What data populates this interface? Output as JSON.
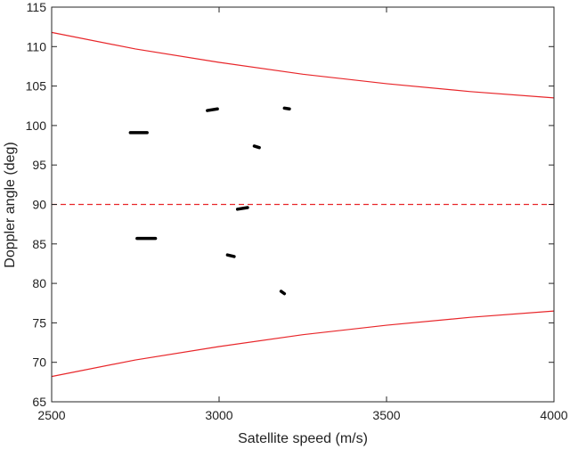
{
  "chart_data": {
    "type": "line",
    "title": "",
    "xlabel": "Satellite speed (m/s)",
    "ylabel": "Doppler angle (deg)",
    "xlim": [
      2500,
      4000
    ],
    "ylim": [
      65,
      115
    ],
    "xticks": [
      2500,
      3000,
      3500,
      4000
    ],
    "yticks": [
      65,
      70,
      75,
      80,
      85,
      90,
      95,
      100,
      105,
      110,
      115
    ],
    "grid": false,
    "legend": "none",
    "colors": {
      "bounds": "#e8262a",
      "center": "#e8262a",
      "segments": "#000000",
      "frame": "#262626"
    },
    "series": [
      {
        "style": "solid",
        "x": [
          2500,
          2750,
          3000,
          3250,
          3500,
          3750,
          4000
        ],
        "y": [
          111.8,
          109.7,
          108.0,
          106.5,
          105.3,
          104.3,
          103.5
        ]
      },
      {
        "style": "solid",
        "x": [
          2500,
          2750,
          3000,
          3250,
          3500,
          3750,
          4000
        ],
        "y": [
          68.2,
          70.3,
          72.0,
          73.5,
          74.7,
          75.7,
          76.5
        ]
      },
      {
        "style": "dashed",
        "x": [
          2500,
          4000
        ],
        "y": [
          90,
          90
        ]
      }
    ],
    "segments": [
      {
        "x": [
          2735,
          2785
        ],
        "y": [
          99.1,
          99.1
        ]
      },
      {
        "x": [
          2755,
          2810
        ],
        "y": [
          85.7,
          85.7
        ]
      },
      {
        "x": [
          2965,
          2995
        ],
        "y": [
          101.9,
          102.1
        ]
      },
      {
        "x": [
          3055,
          3085
        ],
        "y": [
          89.4,
          89.6
        ]
      },
      {
        "x": [
          3025,
          3045
        ],
        "y": [
          83.6,
          83.4
        ]
      },
      {
        "x": [
          3105,
          3120
        ],
        "y": [
          97.4,
          97.2
        ]
      },
      {
        "x": [
          3195,
          3210
        ],
        "y": [
          102.2,
          102.1
        ]
      },
      {
        "x": [
          3185,
          3195
        ],
        "y": [
          79.0,
          78.7
        ]
      }
    ]
  }
}
